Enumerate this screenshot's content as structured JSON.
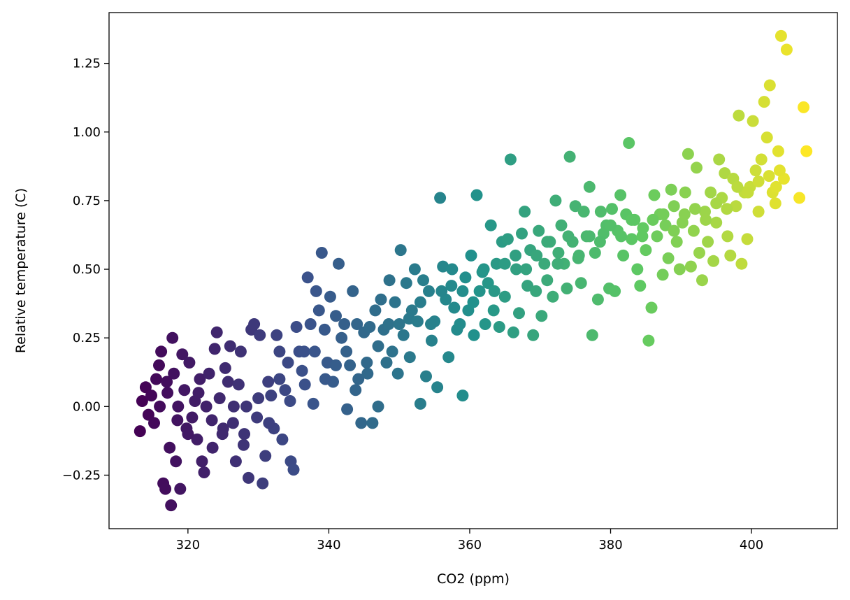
{
  "chart_data": {
    "type": "scatter",
    "title": "",
    "xlabel": "CO2 (ppm)",
    "ylabel": "Relative temperature (C)",
    "xlim": [
      308.8,
      412.2
    ],
    "ylim": [
      -0.445,
      1.435
    ],
    "xticks": [
      320,
      340,
      360,
      380,
      400
    ],
    "yticks": [
      -0.25,
      0.0,
      0.25,
      0.5,
      0.75,
      1.0,
      1.25
    ],
    "x_tick_labels": [
      "320",
      "340",
      "360",
      "380",
      "400"
    ],
    "y_tick_labels": [
      "−0.25",
      "0.00",
      "0.25",
      "0.50",
      "0.75",
      "1.00",
      "1.25"
    ],
    "grid": false,
    "legend": "none",
    "color_encoding": "viridis colormap by x (CO2)",
    "colormap": [
      "#440154",
      "#3b528b",
      "#21918c",
      "#5ec962",
      "#fde725"
    ],
    "points": [
      [
        313.2,
        -0.09
      ],
      [
        313.5,
        0.02
      ],
      [
        314.0,
        0.07
      ],
      [
        314.4,
        -0.03
      ],
      [
        314.8,
        0.04
      ],
      [
        315.2,
        -0.06
      ],
      [
        315.5,
        0.1
      ],
      [
        315.9,
        0.15
      ],
      [
        316.2,
        0.2
      ],
      [
        316.5,
        -0.28
      ],
      [
        316.8,
        -0.3
      ],
      [
        317.1,
        0.05
      ],
      [
        317.4,
        -0.15
      ],
      [
        317.6,
        -0.36
      ],
      [
        317.8,
        0.25
      ],
      [
        318.0,
        0.12
      ],
      [
        318.3,
        -0.2
      ],
      [
        318.6,
        0.0
      ],
      [
        318.9,
        -0.3
      ],
      [
        319.2,
        0.19
      ],
      [
        319.5,
        0.06
      ],
      [
        319.8,
        -0.08
      ],
      [
        320.2,
        0.16
      ],
      [
        320.6,
        -0.04
      ],
      [
        321.0,
        0.02
      ],
      [
        321.3,
        -0.12
      ],
      [
        321.7,
        0.1
      ],
      [
        322.0,
        -0.2
      ],
      [
        322.3,
        -0.24
      ],
      [
        322.6,
        0.0
      ],
      [
        323.0,
        0.12
      ],
      [
        323.4,
        -0.05
      ],
      [
        323.8,
        0.21
      ],
      [
        324.1,
        0.27
      ],
      [
        324.5,
        0.03
      ],
      [
        324.9,
        -0.1
      ],
      [
        325.3,
        0.14
      ],
      [
        325.7,
        0.09
      ],
      [
        326.0,
        0.22
      ],
      [
        326.4,
        -0.06
      ],
      [
        326.8,
        -0.2
      ],
      [
        327.2,
        0.08
      ],
      [
        327.5,
        0.2
      ],
      [
        327.9,
        -0.14
      ],
      [
        328.3,
        0.0
      ],
      [
        328.6,
        -0.26
      ],
      [
        329.0,
        0.28
      ],
      [
        329.4,
        0.3
      ],
      [
        329.8,
        -0.04
      ],
      [
        330.2,
        0.26
      ],
      [
        330.6,
        -0.28
      ],
      [
        331.0,
        -0.18
      ],
      [
        331.4,
        0.09
      ],
      [
        331.8,
        0.04
      ],
      [
        332.2,
        -0.08
      ],
      [
        332.6,
        0.26
      ],
      [
        333.0,
        0.2
      ],
      [
        333.4,
        -0.12
      ],
      [
        333.8,
        0.06
      ],
      [
        334.2,
        0.16
      ],
      [
        334.6,
        -0.2
      ],
      [
        335.0,
        -0.23
      ],
      [
        335.4,
        0.29
      ],
      [
        335.8,
        0.2
      ],
      [
        336.2,
        0.13
      ],
      [
        336.6,
        0.08
      ],
      [
        337.0,
        0.47
      ],
      [
        337.4,
        0.3
      ],
      [
        337.8,
        0.01
      ],
      [
        338.2,
        0.42
      ],
      [
        338.6,
        0.35
      ],
      [
        339.0,
        0.56
      ],
      [
        339.4,
        0.28
      ],
      [
        339.8,
        0.16
      ],
      [
        340.2,
        0.4
      ],
      [
        340.6,
        0.09
      ],
      [
        341.0,
        0.33
      ],
      [
        341.4,
        0.52
      ],
      [
        341.8,
        0.25
      ],
      [
        342.2,
        0.3
      ],
      [
        342.6,
        -0.01
      ],
      [
        343.0,
        0.15
      ],
      [
        343.4,
        0.42
      ],
      [
        343.8,
        0.06
      ],
      [
        344.2,
        0.1
      ],
      [
        344.6,
        -0.06
      ],
      [
        345.0,
        0.27
      ],
      [
        345.4,
        0.16
      ],
      [
        345.8,
        0.29
      ],
      [
        346.2,
        -0.06
      ],
      [
        346.6,
        0.35
      ],
      [
        347.0,
        0.0
      ],
      [
        347.4,
        0.39
      ],
      [
        347.8,
        0.28
      ],
      [
        348.2,
        0.16
      ],
      [
        348.6,
        0.46
      ],
      [
        349.0,
        0.2
      ],
      [
        349.4,
        0.38
      ],
      [
        349.8,
        0.12
      ],
      [
        350.2,
        0.57
      ],
      [
        350.6,
        0.26
      ],
      [
        351.0,
        0.45
      ],
      [
        351.4,
        0.32
      ],
      [
        351.8,
        0.35
      ],
      [
        352.2,
        0.5
      ],
      [
        352.6,
        0.31
      ],
      [
        353.0,
        0.01
      ],
      [
        353.4,
        0.46
      ],
      [
        353.8,
        0.11
      ],
      [
        354.2,
        0.42
      ],
      [
        354.6,
        0.24
      ],
      [
        355.0,
        0.31
      ],
      [
        355.4,
        0.07
      ],
      [
        355.8,
        0.76
      ],
      [
        356.2,
        0.51
      ],
      [
        356.6,
        0.39
      ],
      [
        357.0,
        0.18
      ],
      [
        357.4,
        0.44
      ],
      [
        357.8,
        0.36
      ],
      [
        358.2,
        0.28
      ],
      [
        358.6,
        0.3
      ],
      [
        359.0,
        0.04
      ],
      [
        359.4,
        0.47
      ],
      [
        359.8,
        0.35
      ],
      [
        360.2,
        0.55
      ],
      [
        360.6,
        0.26
      ],
      [
        361.0,
        0.77
      ],
      [
        361.4,
        0.42
      ],
      [
        361.8,
        0.49
      ],
      [
        362.2,
        0.3
      ],
      [
        362.6,
        0.45
      ],
      [
        363.0,
        0.66
      ],
      [
        363.4,
        0.35
      ],
      [
        363.8,
        0.52
      ],
      [
        364.2,
        0.29
      ],
      [
        364.6,
        0.6
      ],
      [
        365.0,
        0.4
      ],
      [
        365.4,
        0.61
      ],
      [
        365.8,
        0.9
      ],
      [
        366.2,
        0.27
      ],
      [
        366.6,
        0.5
      ],
      [
        367.0,
        0.34
      ],
      [
        367.4,
        0.63
      ],
      [
        367.8,
        0.71
      ],
      [
        368.2,
        0.44
      ],
      [
        368.6,
        0.57
      ],
      [
        369.0,
        0.26
      ],
      [
        369.4,
        0.42
      ],
      [
        369.8,
        0.64
      ],
      [
        370.2,
        0.33
      ],
      [
        370.6,
        0.52
      ],
      [
        371.0,
        0.46
      ],
      [
        371.4,
        0.6
      ],
      [
        371.8,
        0.4
      ],
      [
        372.2,
        0.75
      ],
      [
        372.6,
        0.56
      ],
      [
        373.0,
        0.66
      ],
      [
        373.4,
        0.52
      ],
      [
        373.8,
        0.43
      ],
      [
        374.2,
        0.91
      ],
      [
        374.6,
        0.6
      ],
      [
        375.0,
        0.73
      ],
      [
        375.4,
        0.54
      ],
      [
        375.8,
        0.45
      ],
      [
        376.2,
        0.71
      ],
      [
        376.6,
        0.62
      ],
      [
        377.0,
        0.8
      ],
      [
        377.4,
        0.26
      ],
      [
        377.8,
        0.56
      ],
      [
        378.2,
        0.39
      ],
      [
        378.6,
        0.71
      ],
      [
        379.0,
        0.63
      ],
      [
        379.4,
        0.66
      ],
      [
        379.8,
        0.43
      ],
      [
        380.2,
        0.72
      ],
      [
        380.6,
        0.42
      ],
      [
        381.0,
        0.64
      ],
      [
        381.4,
        0.77
      ],
      [
        381.8,
        0.55
      ],
      [
        382.2,
        0.7
      ],
      [
        382.6,
        0.96
      ],
      [
        383.0,
        0.61
      ],
      [
        383.4,
        0.68
      ],
      [
        383.8,
        0.5
      ],
      [
        384.2,
        0.44
      ],
      [
        384.6,
        0.65
      ],
      [
        385.0,
        0.57
      ],
      [
        385.4,
        0.24
      ],
      [
        385.8,
        0.36
      ],
      [
        386.2,
        0.77
      ],
      [
        386.6,
        0.62
      ],
      [
        387.0,
        0.7
      ],
      [
        387.4,
        0.48
      ],
      [
        387.8,
        0.66
      ],
      [
        388.2,
        0.54
      ],
      [
        388.6,
        0.79
      ],
      [
        389.0,
        0.73
      ],
      [
        389.4,
        0.6
      ],
      [
        389.8,
        0.5
      ],
      [
        390.2,
        0.67
      ],
      [
        390.6,
        0.78
      ],
      [
        391.0,
        0.92
      ],
      [
        391.4,
        0.51
      ],
      [
        391.8,
        0.64
      ],
      [
        392.2,
        0.87
      ],
      [
        392.6,
        0.56
      ],
      [
        393.0,
        0.46
      ],
      [
        393.4,
        0.71
      ],
      [
        393.8,
        0.6
      ],
      [
        394.2,
        0.78
      ],
      [
        394.6,
        0.53
      ],
      [
        395.0,
        0.67
      ],
      [
        395.4,
        0.9
      ],
      [
        395.8,
        0.76
      ],
      [
        396.2,
        0.85
      ],
      [
        396.6,
        0.62
      ],
      [
        397.0,
        0.55
      ],
      [
        397.4,
        0.83
      ],
      [
        397.8,
        0.73
      ],
      [
        398.2,
        1.06
      ],
      [
        398.6,
        0.52
      ],
      [
        399.0,
        0.78
      ],
      [
        399.4,
        0.61
      ],
      [
        399.8,
        0.8
      ],
      [
        400.2,
        1.04
      ],
      [
        400.6,
        0.86
      ],
      [
        401.0,
        0.71
      ],
      [
        401.4,
        0.9
      ],
      [
        401.8,
        1.11
      ],
      [
        402.2,
        0.98
      ],
      [
        402.6,
        1.17
      ],
      [
        403.0,
        0.78
      ],
      [
        403.4,
        0.74
      ],
      [
        403.8,
        0.93
      ],
      [
        404.2,
        1.35
      ],
      [
        404.6,
        0.83
      ],
      [
        405.0,
        1.3
      ],
      [
        406.8,
        0.76
      ],
      [
        407.4,
        1.09
      ],
      [
        407.8,
        0.93
      ],
      [
        316.0,
        0.0
      ],
      [
        317.0,
        0.09
      ],
      [
        318.5,
        -0.05
      ],
      [
        320.0,
        -0.1
      ],
      [
        321.5,
        0.05
      ],
      [
        323.5,
        -0.15
      ],
      [
        325.0,
        -0.08
      ],
      [
        326.5,
        0.0
      ],
      [
        328.0,
        -0.1
      ],
      [
        330.0,
        0.03
      ],
      [
        331.5,
        -0.06
      ],
      [
        333.0,
        0.1
      ],
      [
        334.5,
        0.02
      ],
      [
        336.5,
        0.2
      ],
      [
        338.0,
        0.2
      ],
      [
        339.5,
        0.1
      ],
      [
        341.0,
        0.15
      ],
      [
        342.5,
        0.2
      ],
      [
        344.0,
        0.3
      ],
      [
        345.5,
        0.12
      ],
      [
        347.0,
        0.22
      ],
      [
        348.5,
        0.3
      ],
      [
        350.0,
        0.3
      ],
      [
        351.5,
        0.18
      ],
      [
        353.0,
        0.38
      ],
      [
        354.5,
        0.3
      ],
      [
        356.0,
        0.42
      ],
      [
        357.5,
        0.5
      ],
      [
        359.0,
        0.42
      ],
      [
        360.5,
        0.38
      ],
      [
        362.0,
        0.5
      ],
      [
        363.5,
        0.42
      ],
      [
        365.0,
        0.52
      ],
      [
        366.5,
        0.55
      ],
      [
        368.0,
        0.5
      ],
      [
        369.5,
        0.55
      ],
      [
        371.0,
        0.6
      ],
      [
        372.5,
        0.52
      ],
      [
        374.0,
        0.62
      ],
      [
        375.5,
        0.55
      ],
      [
        377.0,
        0.62
      ],
      [
        378.5,
        0.6
      ],
      [
        380.0,
        0.66
      ],
      [
        381.5,
        0.62
      ],
      [
        383.0,
        0.68
      ],
      [
        384.5,
        0.62
      ],
      [
        386.0,
        0.68
      ],
      [
        387.5,
        0.7
      ],
      [
        389.0,
        0.64
      ],
      [
        390.5,
        0.7
      ],
      [
        392.0,
        0.72
      ],
      [
        393.5,
        0.68
      ],
      [
        395.0,
        0.74
      ],
      [
        396.5,
        0.72
      ],
      [
        398.0,
        0.8
      ],
      [
        399.5,
        0.78
      ],
      [
        401.0,
        0.82
      ],
      [
        402.5,
        0.84
      ],
      [
        403.5,
        0.8
      ],
      [
        404.0,
        0.86
      ]
    ]
  }
}
